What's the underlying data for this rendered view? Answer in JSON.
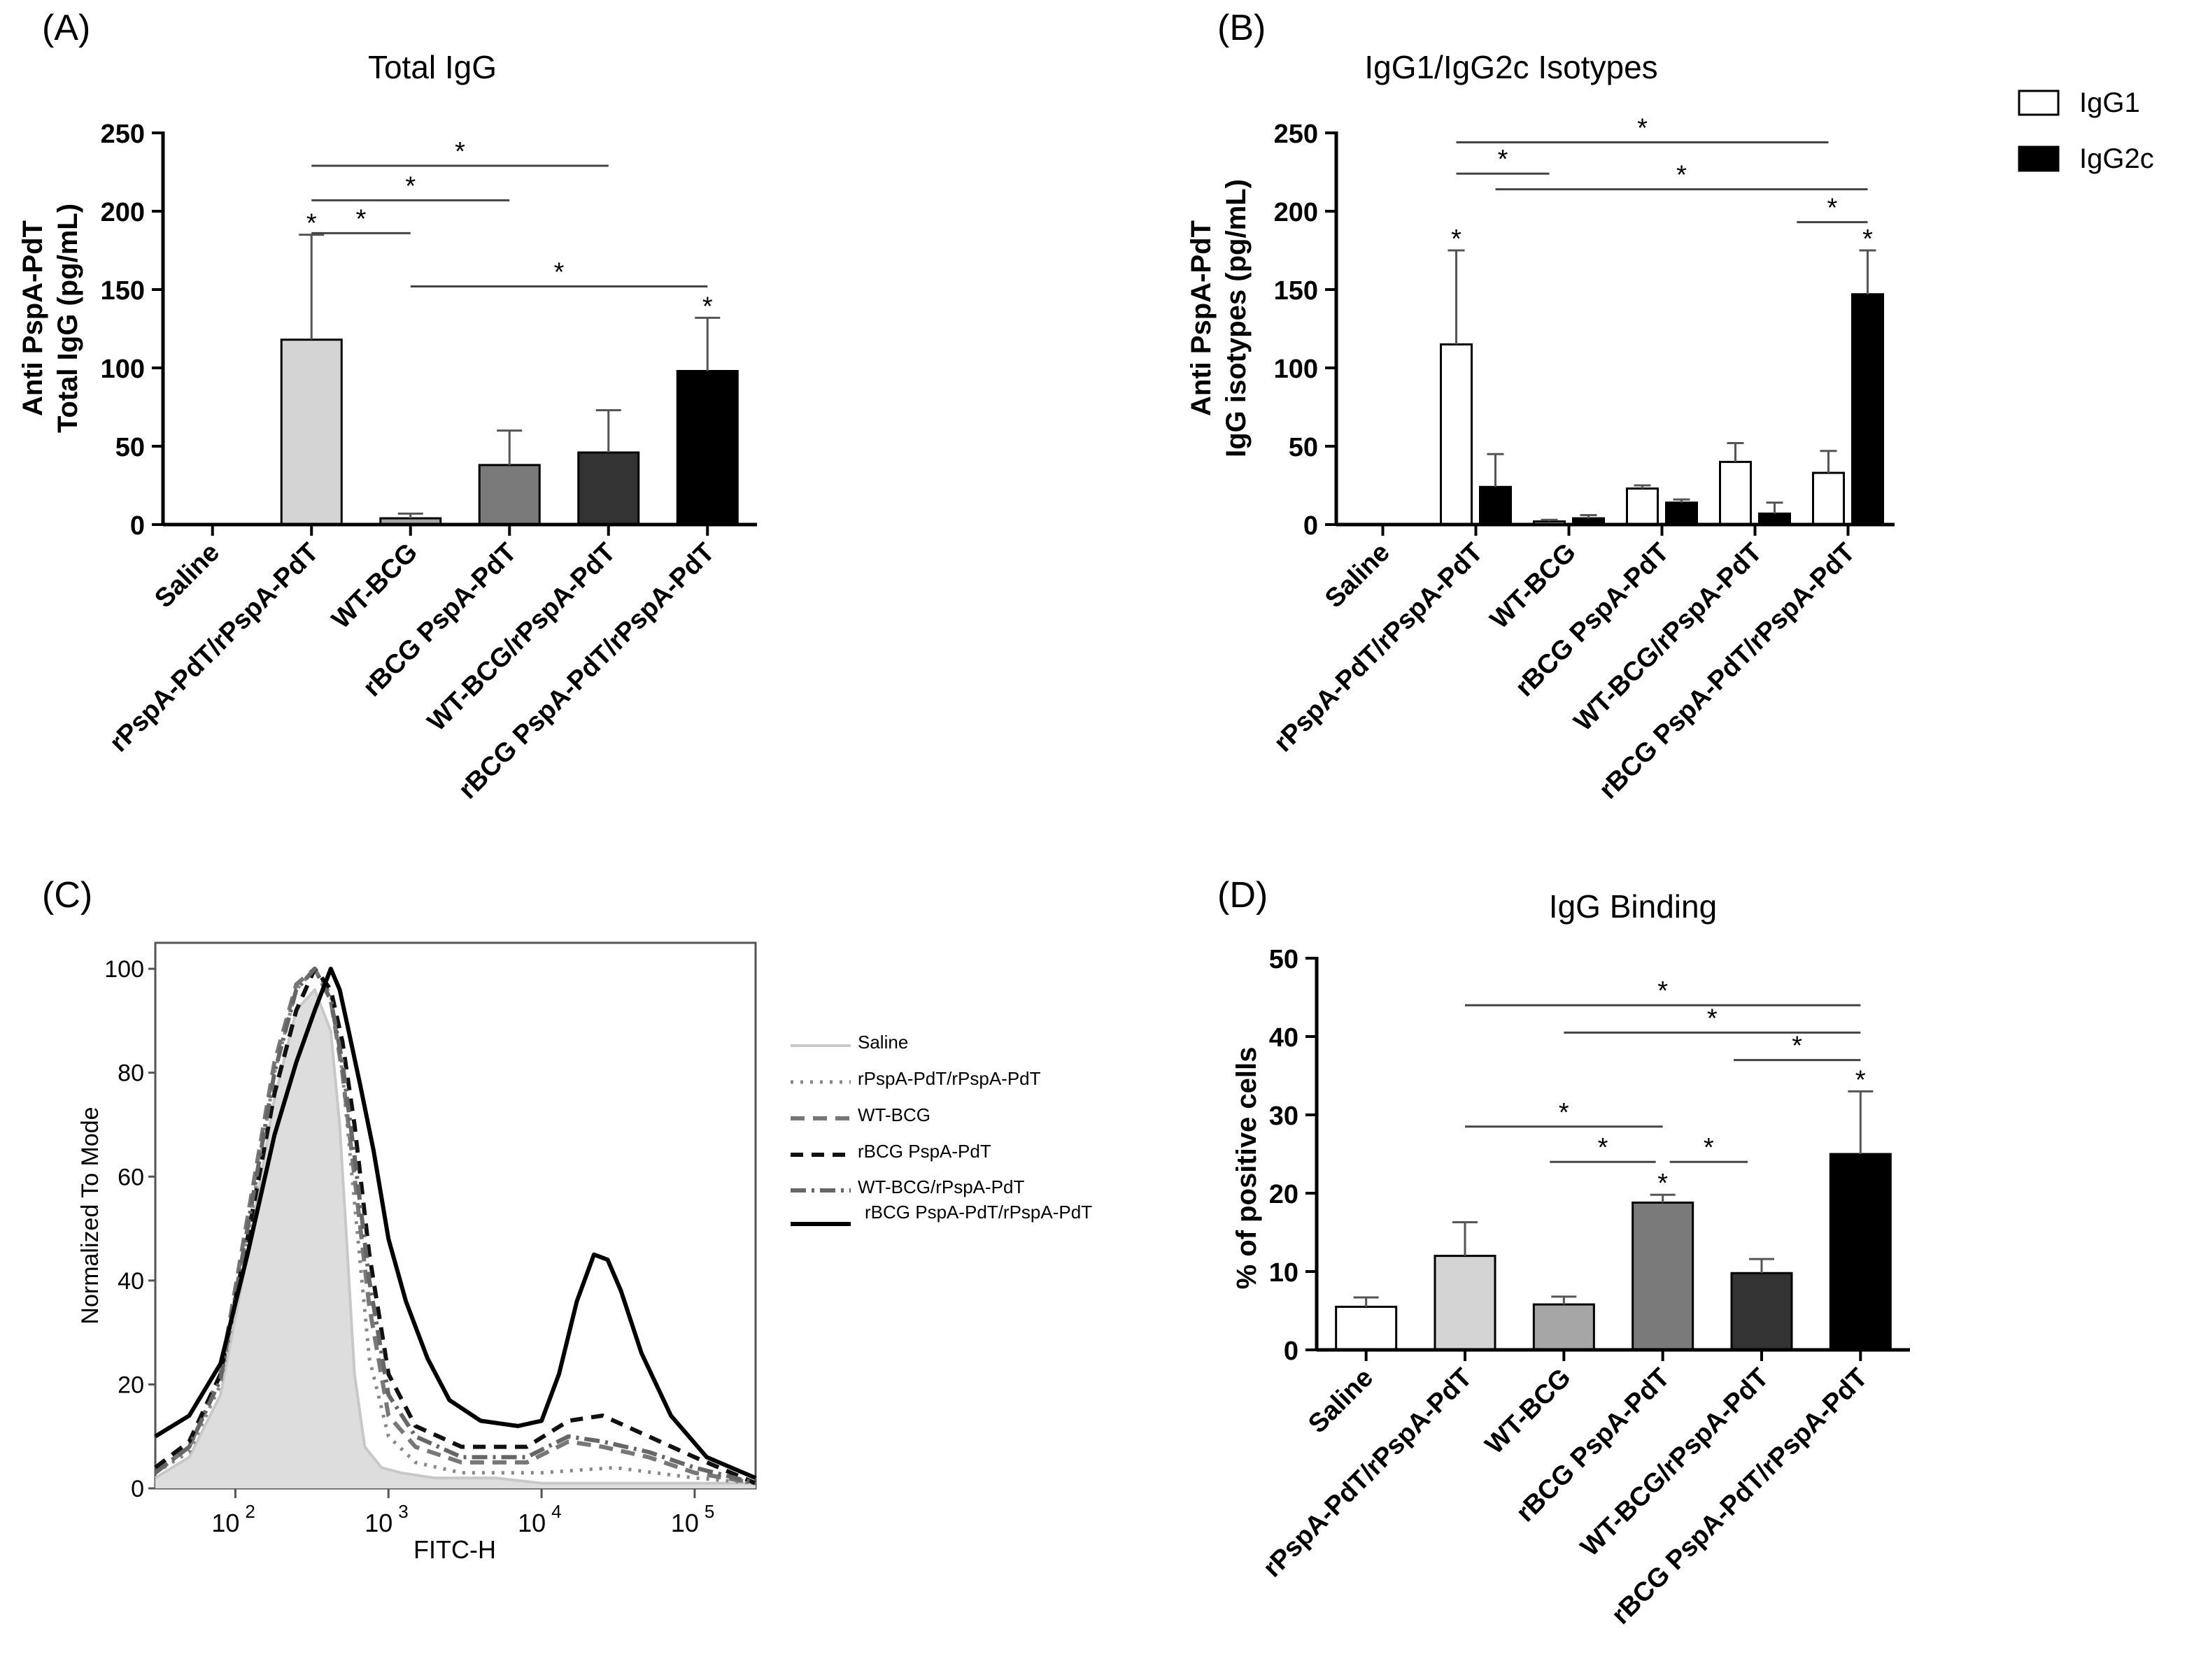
{
  "panels": {
    "a": {
      "label": "(A)",
      "chart_data": {
        "type": "bar",
        "title": "Total IgG",
        "ylabel_line1": "Anti PspA-PdT",
        "ylabel_line2": "Total IgG  (pg/mL)",
        "ylim": [
          0,
          250
        ],
        "yticks": [
          0,
          50,
          100,
          150,
          200,
          250
        ],
        "categories": [
          "Saline",
          "rPspA-PdT/rPspA-PdT",
          "WT-BCG",
          "rBCG PspA-PdT",
          "WT-BCG/rPspA-PdT",
          "rBCG PspA-PdT/rPspA-PdT"
        ],
        "values": [
          0,
          118,
          4,
          38,
          46,
          98
        ],
        "errors": [
          0,
          67,
          3,
          22,
          27,
          34
        ],
        "colors": [
          "#ffffff",
          "#d4d4d4",
          "#a6a6a6",
          "#7a7a7a",
          "#333333",
          "#000000"
        ],
        "bar_stars": [
          "",
          "*",
          "",
          "",
          "",
          "*"
        ],
        "significance": [
          {
            "from": 1,
            "to": 4,
            "y": 229,
            "label": "*"
          },
          {
            "from": 1,
            "to": 3,
            "y": 207,
            "label": "*"
          },
          {
            "from": 1,
            "to": 2,
            "y": 186,
            "label": "*"
          },
          {
            "from": 2,
            "to": 5,
            "y": 152,
            "label": "*"
          }
        ]
      }
    },
    "b": {
      "label": "(B)",
      "chart_data": {
        "type": "bar",
        "title": "IgG1/IgG2c Isotypes",
        "ylabel_line1": "Anti PspA-PdT",
        "ylabel_line2": "IgG isotypes (pg/mL)",
        "ylim": [
          0,
          250
        ],
        "yticks": [
          0,
          50,
          100,
          150,
          200,
          250
        ],
        "categories": [
          "Saline",
          "rPspA-PdT/rPspA-PdT",
          "WT-BCG",
          "rBCG PspA-PdT",
          "WT-BCG/rPspA-PdT",
          "rBCG PspA-PdT/rPspA-PdT"
        ],
        "series": [
          {
            "name": "IgG1",
            "color": "#ffffff",
            "values": [
              0,
              115,
              2,
              23,
              40,
              33
            ],
            "errors": [
              0,
              60,
              1,
              2,
              12,
              14
            ],
            "stars": [
              "",
              "*",
              "",
              "",
              "",
              ""
            ]
          },
          {
            "name": "IgG2c",
            "color": "#000000",
            "values": [
              0,
              24,
              4,
              14,
              7,
              147
            ],
            "errors": [
              0,
              21,
              2,
              2,
              7,
              28
            ],
            "stars": [
              "",
              "",
              "",
              "",
              "",
              "*"
            ]
          }
        ],
        "significance": [
          {
            "from": 1,
            "to": 5,
            "sfrom": 0,
            "sto": 0,
            "y": 244,
            "label": "*"
          },
          {
            "from": 1,
            "to": 2,
            "sfrom": 0,
            "sto": 0,
            "y": 224,
            "label": "*"
          },
          {
            "from": 1,
            "to": 5,
            "sfrom": 1,
            "sto": 1,
            "y": 214,
            "label": "*"
          },
          {
            "from": 5,
            "to": 5,
            "sfrom": -2,
            "sto": 1,
            "y": 193,
            "label": "*"
          }
        ]
      }
    },
    "c": {
      "label": "(C)",
      "chart_data": {
        "type": "line",
        "xlabel": "FITC-H",
        "ylabel": "Normalized To Mode",
        "xscale": "log",
        "xlim": [
          30,
          250000
        ],
        "ylim": [
          0,
          105
        ],
        "yticks": [
          0,
          20,
          40,
          60,
          80,
          100
        ],
        "xticks": [
          {
            "value": 100,
            "base": "10",
            "exp": "2"
          },
          {
            "value": 1000,
            "base": "10",
            "exp": "3"
          },
          {
            "value": 10000,
            "base": "10",
            "exp": "4"
          },
          {
            "value": 100000,
            "base": "10",
            "exp": "5"
          }
        ],
        "series": [
          {
            "name": "Saline",
            "color": "#c8c8c8",
            "dash": "",
            "fill": "#dddddd",
            "width": 4,
            "x": [
              30,
              50,
              80,
              120,
              180,
              250,
              330,
              420,
              480,
              540,
              600,
              700,
              900,
              1200,
              2000,
              5000,
              10000,
              30000,
              100000,
              250000
            ],
            "y": [
              2,
              6,
              18,
              45,
              75,
              92,
              96,
              88,
              70,
              45,
              22,
              8,
              4,
              3,
              2,
              2,
              1,
              1,
              1,
              1
            ]
          },
          {
            "name": "rPspA-PdT/rPspA-PdT",
            "color": "#888888",
            "dash": "4,10",
            "width": 5,
            "x": [
              30,
              50,
              80,
              120,
              180,
              250,
              330,
              420,
              500,
              600,
              750,
              1000,
              1500,
              3000,
              10000,
              30000,
              100000,
              250000
            ],
            "y": [
              3,
              7,
              20,
              48,
              80,
              96,
              100,
              95,
              80,
              55,
              25,
              10,
              5,
              3,
              3,
              4,
              2,
              1
            ]
          },
          {
            "name": "WT-BCG",
            "color": "#777777",
            "dash": "20,12",
            "width": 6,
            "x": [
              30,
              50,
              80,
              120,
              180,
              250,
              330,
              420,
              500,
              600,
              750,
              1000,
              1500,
              3000,
              8000,
              15000,
              25000,
              50000,
              100000,
              250000
            ],
            "y": [
              3,
              8,
              22,
              52,
              82,
              97,
              100,
              94,
              80,
              60,
              35,
              14,
              8,
              5,
              5,
              9,
              8,
              6,
              3,
              1
            ]
          },
          {
            "name": "rBCG PspA-PdT",
            "color": "#111111",
            "dash": "18,12",
            "width": 6,
            "x": [
              30,
              50,
              80,
              120,
              180,
              250,
              330,
              420,
              500,
              600,
              750,
              1000,
              1500,
              3000,
              8000,
              15000,
              25000,
              50000,
              100000,
              250000
            ],
            "y": [
              4,
              9,
              22,
              48,
              76,
              92,
              100,
              96,
              86,
              70,
              45,
              22,
              12,
              8,
              8,
              13,
              14,
              10,
              6,
              1
            ]
          },
          {
            "name": "WT-BCG/rPspA-PdT",
            "color": "#666666",
            "dash": "22,8,4,8",
            "width": 6,
            "x": [
              30,
              50,
              80,
              120,
              180,
              250,
              330,
              420,
              500,
              600,
              750,
              1000,
              1500,
              3000,
              8000,
              15000,
              25000,
              50000,
              100000,
              250000
            ],
            "y": [
              3,
              8,
              21,
              50,
              80,
              96,
              100,
              94,
              82,
              64,
              40,
              18,
              10,
              6,
              6,
              10,
              9,
              7,
              4,
              1
            ]
          },
          {
            "name": "rBCG PspA-PdT/rPspA-PdT",
            "color": "#000000",
            "dash": "",
            "width": 6,
            "x": [
              30,
              50,
              80,
              120,
              180,
              250,
              330,
              420,
              480,
              550,
              650,
              800,
              1000,
              1300,
              1800,
              2500,
              4000,
              7000,
              10000,
              13000,
              17000,
              22000,
              27000,
              33000,
              45000,
              70000,
              120000,
              250000
            ],
            "y": [
              10,
              14,
              24,
              45,
              68,
              82,
              92,
              100,
              96,
              88,
              78,
              65,
              48,
              36,
              25,
              17,
              13,
              12,
              13,
              22,
              36,
              45,
              44,
              38,
              26,
              14,
              6,
              2
            ]
          }
        ]
      }
    },
    "d": {
      "label": "(D)",
      "chart_data": {
        "type": "bar",
        "title": "IgG Binding",
        "ylabel": "% of positive cells",
        "ylim": [
          0,
          50
        ],
        "yticks": [
          0,
          10,
          20,
          30,
          40,
          50
        ],
        "categories": [
          "Saline",
          "rPspA-PdT/rPspA-PdT",
          "WT-BCG",
          "rBCG PspA-PdT",
          "WT-BCG/rPspA-PdT",
          "rBCG PspA-PdT/rPspA-PdT"
        ],
        "values": [
          5.5,
          12,
          5.8,
          18.8,
          9.8,
          25
        ],
        "errors": [
          1.2,
          4.3,
          1,
          1,
          1.8,
          8
        ],
        "colors": [
          "#ffffff",
          "#d4d4d4",
          "#a6a6a6",
          "#7a7a7a",
          "#333333",
          "#000000"
        ],
        "bar_stars": [
          "",
          "",
          "",
          "*",
          "",
          "*"
        ],
        "significance": [
          {
            "from": 1,
            "to": 5,
            "y": 44,
            "label": "*"
          },
          {
            "from": 2,
            "to": 5,
            "y": 40.5,
            "label": "*"
          },
          {
            "from": 4,
            "to": 5,
            "y": 37,
            "label": "*"
          },
          {
            "from": 1,
            "to": 3,
            "y": 28.5,
            "label": "*"
          },
          {
            "from": 2,
            "to": 3,
            "y": 24,
            "label": "*"
          },
          {
            "from": 3,
            "to": 4,
            "y": 24,
            "label": "*"
          }
        ]
      }
    }
  }
}
